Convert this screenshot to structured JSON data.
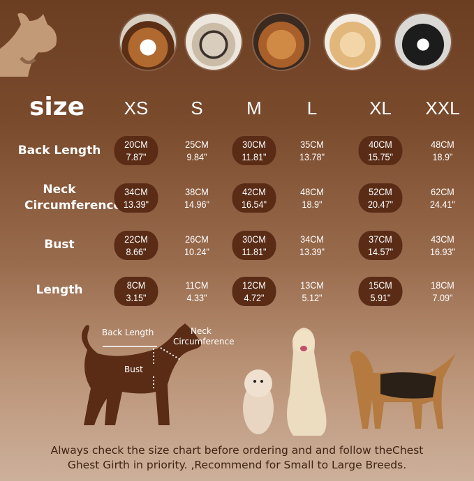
{
  "header": {
    "size_label": "size"
  },
  "sizes": [
    "XS",
    "S",
    "M",
    "L",
    "XL",
    "XXL"
  ],
  "rows": [
    {
      "label": "Back Length",
      "values": [
        [
          "20CM",
          "7.87\""
        ],
        [
          "25CM",
          "9.84\""
        ],
        [
          "30CM",
          "11.81\""
        ],
        [
          "35CM",
          "13.78\""
        ],
        [
          "40CM",
          "15.75\""
        ],
        [
          "48CM",
          "18.9\""
        ]
      ]
    },
    {
      "label": "Neck Circumference",
      "values": [
        [
          "34CM",
          "13.39\""
        ],
        [
          "38CM",
          "14.96\""
        ],
        [
          "42CM",
          "16.54\""
        ],
        [
          "48CM",
          "18.9\""
        ],
        [
          "52CM",
          "20.47\""
        ],
        [
          "62CM",
          "24.41\""
        ]
      ]
    },
    {
      "label": "Bust",
      "values": [
        [
          "22CM",
          "8.66\""
        ],
        [
          "26CM",
          "10.24\""
        ],
        [
          "30CM",
          "11.81\""
        ],
        [
          "34CM",
          "13.39\""
        ],
        [
          "37CM",
          "14.57\""
        ],
        [
          "43CM",
          "16.93\""
        ]
      ]
    },
    {
      "label": "Length",
      "values": [
        [
          "8CM",
          "3.15\""
        ],
        [
          "11CM",
          "4.33\""
        ],
        [
          "12CM",
          "4.72\""
        ],
        [
          "13CM",
          "5.12\""
        ],
        [
          "15CM",
          "5.91\""
        ],
        [
          "18CM",
          "7.09\""
        ]
      ]
    }
  ],
  "diagram": {
    "back_length": "Back Length",
    "neck": "Neck",
    "circumference": "Circumference",
    "bust": "Bust"
  },
  "note": {
    "line1": "Always check the size chart before ordering and and follow theChest",
    "line2": "Ghest Girth in priority. ,Recommend for Small to Large Breeds."
  },
  "colors": {
    "pill": "#5a2c16",
    "bg_top": "#6b3e22",
    "bg_bottom": "#cdb09b",
    "text": "#ffffff",
    "note_text": "#3f2414"
  },
  "photos": [
    "beagle-photo",
    "french-bulldog-photo",
    "cocker-spaniel-photo",
    "golden-retriever-photo",
    "border-collie-photo"
  ]
}
